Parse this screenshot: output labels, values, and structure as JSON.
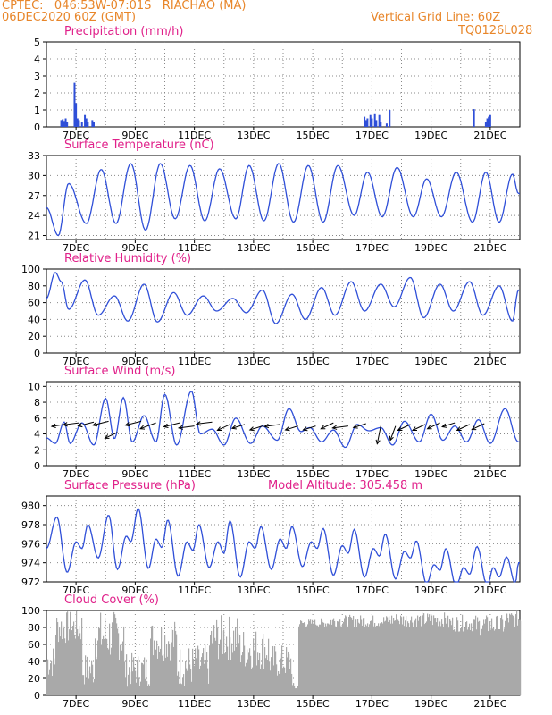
{
  "header": {
    "line1_left": "CPTEC:   046:53W-07:01S   RIACHAO (MA)",
    "line2_left": "06DEC2020 60Z (GMT)",
    "line1_right": "Vertical Grid Line: 60Z",
    "line2_right": "TQ0126L028",
    "model_altitude": "Model Altitude: 305.458 m"
  },
  "colors": {
    "header": "#e8862a",
    "title": "#e0218a",
    "line": "#2f4fd8",
    "cloud": "#a9a9a9",
    "arrow": "#000000",
    "grid": "#888888"
  },
  "x_ticks": [
    "7DEC",
    "9DEC",
    "11DEC",
    "13DEC",
    "15DEC",
    "17DEC",
    "19DEC",
    "21DEC"
  ],
  "chart_data": [
    {
      "type": "bar",
      "title": "Precipitation (mm/h)",
      "ylim": [
        0,
        5
      ],
      "yticks": [
        "0",
        "1",
        "2",
        "3",
        "4",
        "5"
      ],
      "x_unit": "days since 06DEC2020 12Z",
      "bars": [
        [
          0.5,
          0.4
        ],
        [
          0.55,
          0.45
        ],
        [
          0.6,
          0.35
        ],
        [
          0.65,
          0.5
        ],
        [
          0.7,
          0.3
        ],
        [
          0.95,
          2.6
        ],
        [
          1.0,
          1.4
        ],
        [
          1.05,
          0.5
        ],
        [
          1.1,
          0.4
        ],
        [
          1.2,
          0.3
        ],
        [
          1.3,
          0.7
        ],
        [
          1.35,
          0.5
        ],
        [
          1.4,
          0.3
        ],
        [
          1.55,
          0.4
        ],
        [
          1.6,
          0.3
        ],
        [
          10.75,
          0.6
        ],
        [
          10.8,
          0.4
        ],
        [
          10.85,
          0.5
        ],
        [
          10.95,
          0.7
        ],
        [
          11.0,
          0.5
        ],
        [
          11.1,
          0.8
        ],
        [
          11.15,
          0.4
        ],
        [
          11.25,
          0.7
        ],
        [
          11.3,
          0.3
        ],
        [
          11.5,
          0.2
        ],
        [
          11.6,
          1.0
        ],
        [
          14.45,
          1.05
        ],
        [
          14.85,
          0.3
        ],
        [
          14.9,
          0.5
        ],
        [
          14.95,
          0.6
        ],
        [
          15.0,
          0.7
        ]
      ]
    },
    {
      "type": "line",
      "title": "Surface Temperature (nC)",
      "ylim": [
        20.4,
        33
      ],
      "yticks": [
        "21",
        "24",
        "27",
        "30",
        "33"
      ],
      "x_unit": "days since 06DEC2020 12Z",
      "min_max": [
        [
          0,
          25.2
        ],
        [
          0.4,
          21.0
        ],
        [
          0.75,
          28.8
        ],
        [
          1.35,
          22.8
        ],
        [
          1.85,
          30.9
        ],
        [
          2.35,
          22.8
        ],
        [
          2.85,
          31.8
        ],
        [
          3.35,
          21.8
        ],
        [
          3.85,
          31.8
        ],
        [
          4.35,
          23.5
        ],
        [
          4.85,
          31.5
        ],
        [
          5.35,
          23.2
        ],
        [
          5.85,
          31.0
        ],
        [
          6.4,
          23.5
        ],
        [
          6.85,
          31.5
        ],
        [
          7.35,
          23.2
        ],
        [
          7.85,
          31.8
        ],
        [
          8.35,
          23.0
        ],
        [
          8.85,
          31.5
        ],
        [
          9.35,
          23.0
        ],
        [
          9.85,
          31.5
        ],
        [
          10.4,
          24.0
        ],
        [
          10.85,
          30.5
        ],
        [
          11.35,
          23.8
        ],
        [
          11.85,
          31.2
        ],
        [
          12.4,
          23.8
        ],
        [
          12.85,
          29.5
        ],
        [
          13.35,
          23.8
        ],
        [
          13.85,
          30.5
        ],
        [
          14.4,
          23.0
        ],
        [
          14.85,
          30.5
        ],
        [
          15.3,
          23.0
        ],
        [
          15.75,
          30.2
        ],
        [
          15.95,
          27.3
        ]
      ]
    },
    {
      "type": "line",
      "title": "Relative Humidity (%)",
      "ylim": [
        0,
        100
      ],
      "yticks": [
        "0",
        "20",
        "40",
        "60",
        "80",
        "100"
      ],
      "x_unit": "days since 06DEC2020 12Z",
      "min_max": [
        [
          0,
          65
        ],
        [
          0.3,
          96
        ],
        [
          0.5,
          85
        ],
        [
          0.75,
          52
        ],
        [
          1.3,
          87
        ],
        [
          1.75,
          45
        ],
        [
          2.3,
          68
        ],
        [
          2.75,
          38
        ],
        [
          3.3,
          82
        ],
        [
          3.75,
          37
        ],
        [
          4.3,
          72
        ],
        [
          4.75,
          45
        ],
        [
          5.3,
          68
        ],
        [
          5.75,
          50
        ],
        [
          6.3,
          65
        ],
        [
          6.75,
          48
        ],
        [
          7.3,
          75
        ],
        [
          7.75,
          35
        ],
        [
          8.3,
          70
        ],
        [
          8.75,
          40
        ],
        [
          9.3,
          78
        ],
        [
          9.75,
          45
        ],
        [
          10.3,
          85
        ],
        [
          10.75,
          50
        ],
        [
          11.3,
          82
        ],
        [
          11.75,
          55
        ],
        [
          12.3,
          90
        ],
        [
          12.75,
          42
        ],
        [
          13.3,
          82
        ],
        [
          13.75,
          50
        ],
        [
          14.3,
          85
        ],
        [
          14.75,
          45
        ],
        [
          15.3,
          80
        ],
        [
          15.75,
          38
        ],
        [
          15.95,
          75
        ]
      ]
    },
    {
      "type": "line",
      "title": "Surface Wind (m/s)",
      "ylim": [
        0,
        10.6
      ],
      "yticks": [
        "0",
        "2",
        "4",
        "6",
        "8",
        "10"
      ],
      "x_unit": "days since 06DEC2020 12Z",
      "min_max": [
        [
          0,
          3.5
        ],
        [
          0.3,
          2.8
        ],
        [
          0.6,
          5.5
        ],
        [
          0.8,
          2.8
        ],
        [
          1.2,
          5.4
        ],
        [
          1.6,
          2.6
        ],
        [
          2.0,
          8.5
        ],
        [
          2.3,
          3.4
        ],
        [
          2.6,
          8.6
        ],
        [
          2.9,
          3.0
        ],
        [
          3.3,
          6.3
        ],
        [
          3.7,
          3.0
        ],
        [
          4.0,
          9.0
        ],
        [
          4.4,
          2.6
        ],
        [
          4.9,
          9.4
        ],
        [
          5.2,
          4.0
        ],
        [
          5.6,
          4.6
        ],
        [
          6.0,
          2.6
        ],
        [
          6.4,
          6.0
        ],
        [
          6.9,
          2.8
        ],
        [
          7.3,
          5.0
        ],
        [
          7.8,
          3.2
        ],
        [
          8.2,
          7.2
        ],
        [
          8.6,
          4.3
        ],
        [
          8.9,
          4.8
        ],
        [
          9.3,
          3.0
        ],
        [
          9.7,
          4.5
        ],
        [
          10.1,
          2.3
        ],
        [
          10.5,
          5.2
        ],
        [
          10.9,
          4.4
        ],
        [
          11.3,
          4.8
        ],
        [
          11.7,
          2.6
        ],
        [
          12.1,
          5.6
        ],
        [
          12.6,
          3.0
        ],
        [
          13.0,
          6.5
        ],
        [
          13.4,
          3.2
        ],
        [
          13.8,
          5.0
        ],
        [
          14.2,
          3.0
        ],
        [
          14.6,
          5.8
        ],
        [
          15.0,
          2.8
        ],
        [
          15.5,
          7.2
        ],
        [
          15.95,
          3.0
        ]
      ],
      "arrows": [
        [
          0.6,
          5.2,
          4,
          1,
          "left"
        ],
        [
          1.1,
          5.4,
          5,
          1,
          "left"
        ],
        [
          1.6,
          5.5,
          5,
          2,
          "left"
        ],
        [
          2.1,
          5.6,
          5,
          2,
          "left"
        ],
        [
          2.4,
          4.2,
          4,
          3,
          "left"
        ],
        [
          3.2,
          5.6,
          5,
          2,
          "left"
        ],
        [
          3.7,
          5.4,
          5,
          3,
          "left"
        ],
        [
          4.5,
          5.4,
          5,
          2,
          "left"
        ],
        [
          5.0,
          5.0,
          5,
          1,
          "left"
        ],
        [
          5.6,
          5.5,
          5,
          1,
          "left"
        ],
        [
          6.2,
          5.2,
          4,
          3,
          "left"
        ],
        [
          6.7,
          5.2,
          4,
          2,
          "left"
        ],
        [
          7.3,
          5.0,
          4,
          2,
          "left"
        ],
        [
          7.9,
          5.2,
          5,
          1,
          "left"
        ],
        [
          8.5,
          5.0,
          4,
          2,
          "left"
        ],
        [
          9.1,
          5.0,
          4,
          2,
          "left"
        ],
        [
          9.7,
          5.4,
          4,
          3,
          "left"
        ],
        [
          10.2,
          5.0,
          5,
          1,
          "left"
        ],
        [
          10.8,
          5.3,
          4,
          2,
          "left"
        ],
        [
          11.3,
          5.0,
          2,
          5,
          "down"
        ],
        [
          11.8,
          5.0,
          3,
          4,
          "down"
        ],
        [
          12.3,
          5.2,
          4,
          3,
          "left"
        ],
        [
          12.8,
          5.2,
          4,
          3,
          "left"
        ],
        [
          13.3,
          5.4,
          4,
          3,
          "left"
        ],
        [
          13.8,
          5.4,
          4,
          2,
          "left"
        ],
        [
          14.3,
          5.2,
          4,
          3,
          "left"
        ],
        [
          14.8,
          5.3,
          4,
          3,
          "left"
        ]
      ]
    },
    {
      "type": "line",
      "title": "Surface Pressure (hPa)",
      "ylim": [
        972,
        981
      ],
      "yticks": [
        "972",
        "974",
        "976",
        "978",
        "980"
      ],
      "x_unit": "days since 06DEC2020 12Z",
      "min_max": [
        [
          0,
          975.5
        ],
        [
          0.35,
          978.8
        ],
        [
          0.7,
          973.0
        ],
        [
          1.0,
          976.2
        ],
        [
          1.2,
          975.5
        ],
        [
          1.4,
          978.0
        ],
        [
          1.75,
          974.5
        ],
        [
          2.1,
          979.0
        ],
        [
          2.4,
          973.3
        ],
        [
          2.7,
          976.8
        ],
        [
          2.85,
          976.2
        ],
        [
          3.1,
          979.7
        ],
        [
          3.45,
          973.4
        ],
        [
          3.7,
          976.5
        ],
        [
          3.9,
          975.6
        ],
        [
          4.1,
          978.5
        ],
        [
          4.45,
          972.6
        ],
        [
          4.75,
          976.2
        ],
        [
          4.95,
          975.3
        ],
        [
          5.15,
          978.0
        ],
        [
          5.5,
          973.5
        ],
        [
          5.8,
          976.2
        ],
        [
          6.0,
          975.0
        ],
        [
          6.2,
          978.4
        ],
        [
          6.55,
          972.5
        ],
        [
          6.85,
          976.2
        ],
        [
          7.05,
          975.5
        ],
        [
          7.25,
          977.8
        ],
        [
          7.6,
          973.3
        ],
        [
          7.9,
          976.5
        ],
        [
          8.1,
          975.5
        ],
        [
          8.3,
          977.8
        ],
        [
          8.65,
          973.6
        ],
        [
          8.95,
          976.2
        ],
        [
          9.15,
          975.5
        ],
        [
          9.35,
          977.6
        ],
        [
          9.7,
          972.7
        ],
        [
          10.0,
          975.8
        ],
        [
          10.2,
          975.0
        ],
        [
          10.4,
          977.5
        ],
        [
          10.75,
          972.5
        ],
        [
          11.05,
          975.5
        ],
        [
          11.25,
          974.7
        ],
        [
          11.45,
          977.0
        ],
        [
          11.8,
          972.3
        ],
        [
          12.1,
          975.2
        ],
        [
          12.3,
          974.5
        ],
        [
          12.5,
          976.3
        ],
        [
          12.85,
          971.8
        ],
        [
          13.1,
          973.8
        ],
        [
          13.3,
          973.2
        ],
        [
          13.5,
          975.5
        ],
        [
          13.85,
          971.5
        ],
        [
          14.1,
          973.5
        ],
        [
          14.3,
          972.8
        ],
        [
          14.55,
          975.7
        ],
        [
          14.9,
          971.5
        ],
        [
          15.1,
          973.5
        ],
        [
          15.3,
          972.5
        ],
        [
          15.55,
          974.6
        ],
        [
          15.85,
          971.8
        ],
        [
          15.95,
          974.0
        ]
      ]
    },
    {
      "type": "bar",
      "title": "Cloud Cover (%)",
      "ylim": [
        0,
        100
      ],
      "yticks": [
        "0",
        "20",
        "40",
        "60",
        "80",
        "100"
      ],
      "x_unit": "days since 06DEC2020 12Z",
      "segments": [
        [
          0,
          0.3,
          20,
          60
        ],
        [
          0.3,
          1.2,
          60,
          100
        ],
        [
          1.2,
          1.6,
          10,
          50
        ],
        [
          1.6,
          2.6,
          40,
          100
        ],
        [
          2.6,
          3.5,
          10,
          50
        ],
        [
          3.5,
          4.4,
          40,
          90
        ],
        [
          4.4,
          5.5,
          10,
          60
        ],
        [
          5.5,
          6.5,
          40,
          95
        ],
        [
          6.5,
          7.5,
          30,
          80
        ],
        [
          7.5,
          8.3,
          20,
          60
        ],
        [
          8.3,
          8.5,
          5,
          15
        ],
        [
          8.5,
          9.5,
          80,
          90
        ],
        [
          9.5,
          10.5,
          80,
          95
        ],
        [
          10.5,
          11.5,
          80,
          95
        ],
        [
          11.5,
          12.5,
          80,
          98
        ],
        [
          12.5,
          13.5,
          80,
          98
        ],
        [
          13.5,
          14.5,
          75,
          95
        ],
        [
          14.5,
          15.5,
          70,
          95
        ],
        [
          15.5,
          16.0,
          80,
          100
        ]
      ]
    }
  ]
}
